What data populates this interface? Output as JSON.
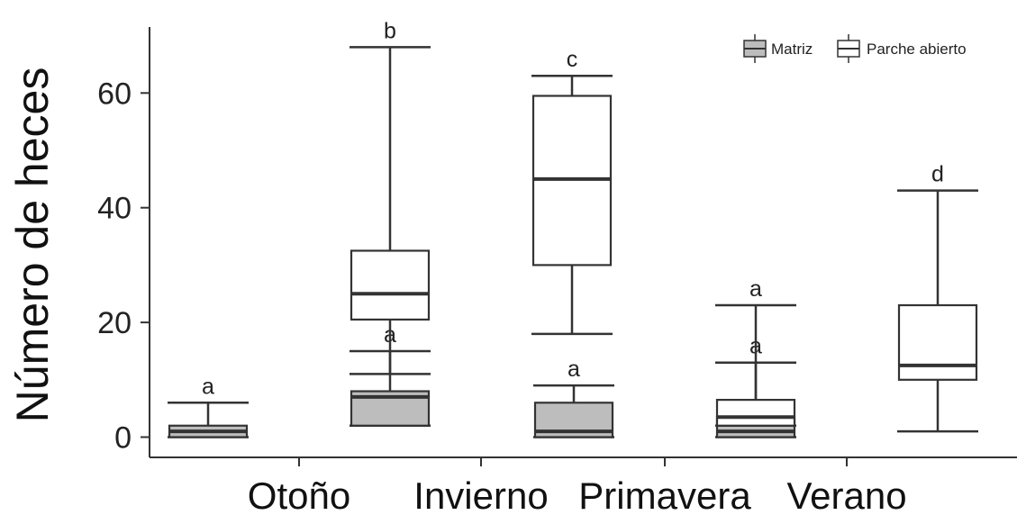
{
  "chart_data": {
    "type": "box",
    "title": "",
    "xlabel": "",
    "ylabel": "Número de heces",
    "ylim": [
      -3.5,
      71
    ],
    "yticks": [
      0,
      20,
      40,
      60
    ],
    "categories": [
      "Otoño",
      "Invierno",
      "Primavera",
      "Verano"
    ],
    "legend": {
      "position": "top-right"
    },
    "grid": false,
    "series": [
      {
        "name": "Matriz",
        "color": "#bdbdbd",
        "boxes": [
          {
            "min": 0,
            "q1": 0,
            "median": 1,
            "q3": 2,
            "max": 6,
            "label": "a"
          },
          {
            "min": 2,
            "q1": 2,
            "median": 7,
            "q3": 8,
            "max": 15,
            "label": "a"
          },
          {
            "min": 0,
            "q1": 0,
            "median": 1,
            "q3": 6,
            "max": 9,
            "label": "a"
          },
          {
            "min": 0,
            "q1": 0,
            "median": 1,
            "q3": 3.5,
            "max": 13,
            "label": "a"
          }
        ]
      },
      {
        "name": "Parche abierto",
        "color": "#ffffff",
        "boxes": [
          {
            "min": 11,
            "q1": 20.5,
            "median": 25,
            "q3": 32.5,
            "max": 68,
            "label": "b"
          },
          {
            "min": 18,
            "q1": 30,
            "median": 45,
            "q3": 59.5,
            "max": 63,
            "label": "c"
          },
          {
            "min": 2,
            "q1": 2,
            "median": 3.5,
            "q3": 6.5,
            "max": 23,
            "label": "a"
          },
          {
            "min": 1,
            "q1": 10,
            "median": 12.5,
            "q3": 23,
            "max": 43,
            "label": "d"
          }
        ]
      }
    ]
  }
}
